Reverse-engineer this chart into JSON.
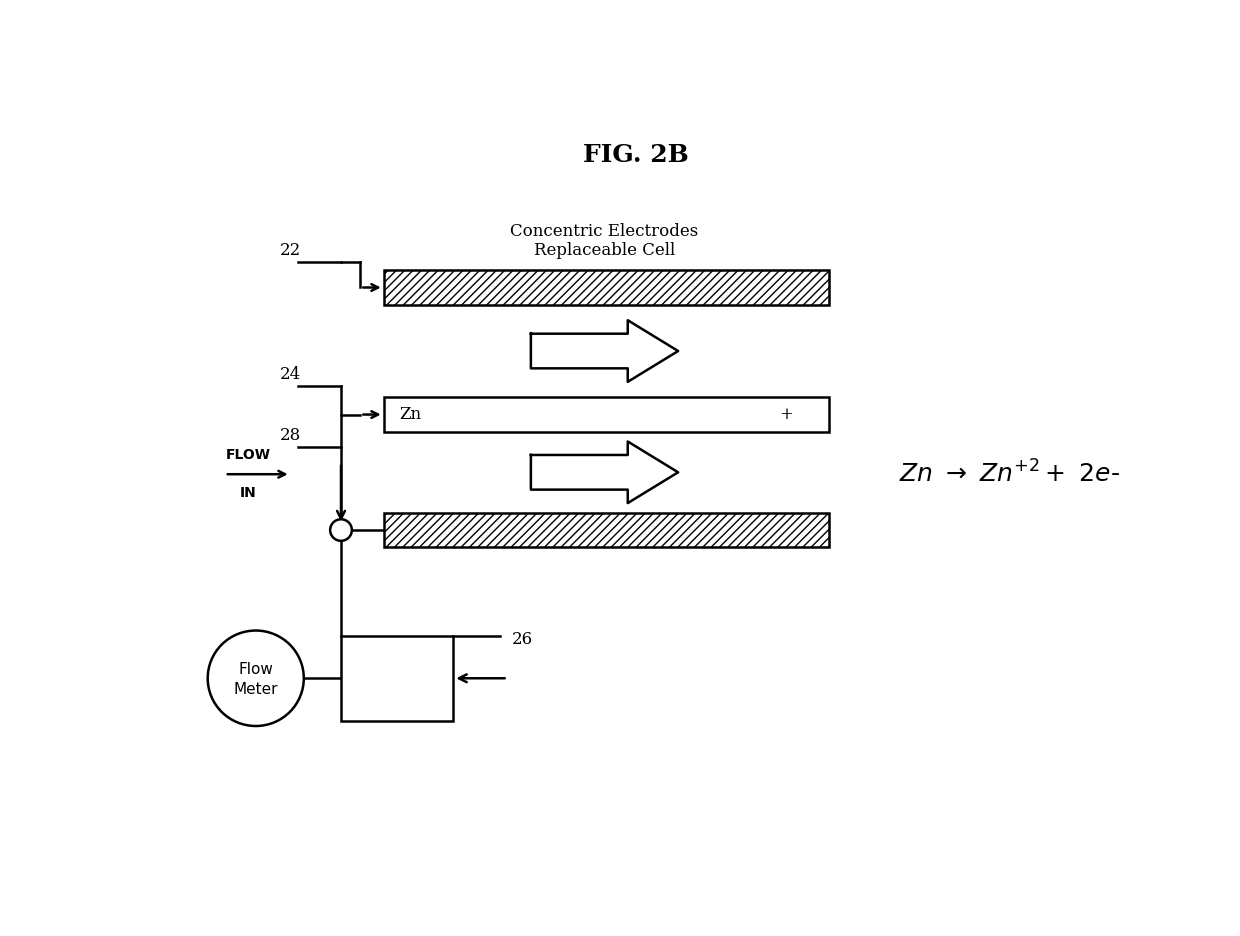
{
  "title": "FIG. 2B",
  "bg_color": "#ffffff",
  "fig_width": 12.4,
  "fig_height": 9.36,
  "label_22": "22",
  "label_24": "24",
  "label_26": "26",
  "label_28": "28",
  "label_flow": "FLOW",
  "label_in": "IN",
  "label_flowmeter_line1": "Flow",
  "label_flowmeter_line2": "Meter",
  "label_zn": "Zn",
  "label_plus": "+",
  "label_cc_title1": "Concentric Electrodes",
  "label_cc_title2": "Replaceable Cell",
  "hatch_pattern": "////",
  "lw": 1.8
}
